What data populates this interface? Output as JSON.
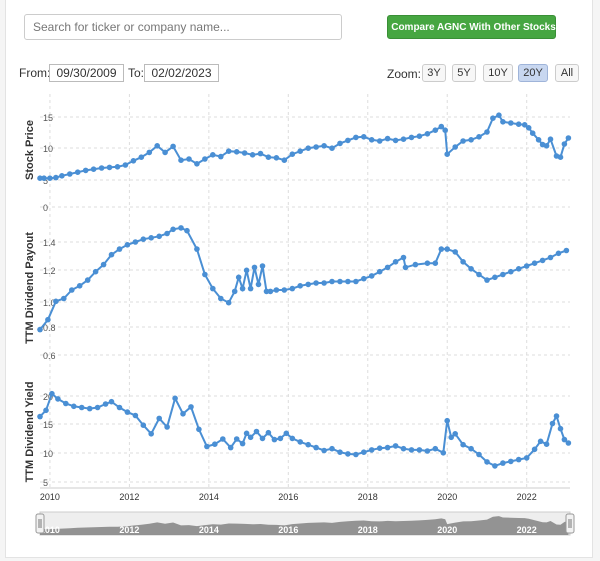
{
  "search": {
    "placeholder": "Search for ticker or company name..."
  },
  "compare_button": {
    "label": "Compare AGNC With Other Stocks",
    "color": "#46a641"
  },
  "date_range": {
    "from_label": "From:",
    "from_value": "09/30/2009",
    "to_label": "To:",
    "to_value": "02/02/2023"
  },
  "zoom": {
    "label": "Zoom:",
    "options": [
      "3Y",
      "5Y",
      "10Y",
      "20Y",
      "All"
    ],
    "selected": "20Y"
  },
  "colors": {
    "series": "#4a8fd4",
    "navigator_fill": "#888888"
  },
  "chart_data": [
    {
      "type": "line",
      "ylabel": "Stock Price",
      "yticks": [
        "15",
        "10",
        "5",
        "0"
      ],
      "ylim": [
        0,
        17
      ],
      "x_ticks": [
        "2010",
        "2012",
        "2014",
        "2016",
        "2018",
        "2020",
        "2022"
      ],
      "xlim": [
        2009.75,
        2023.09
      ],
      "grid": true,
      "points": [
        [
          2009.75,
          4.8
        ],
        [
          2009.85,
          4.8
        ],
        [
          2010.0,
          4.8
        ],
        [
          2010.15,
          4.9
        ],
        [
          2010.3,
          5.2
        ],
        [
          2010.5,
          5.5
        ],
        [
          2010.7,
          5.8
        ],
        [
          2010.9,
          6.1
        ],
        [
          2011.1,
          6.3
        ],
        [
          2011.3,
          6.5
        ],
        [
          2011.5,
          6.6
        ],
        [
          2011.7,
          6.7
        ],
        [
          2011.9,
          7.0
        ],
        [
          2012.1,
          7.7
        ],
        [
          2012.3,
          8.3
        ],
        [
          2012.5,
          9.1
        ],
        [
          2012.7,
          10.2
        ],
        [
          2012.9,
          9.1
        ],
        [
          2013.1,
          10.1
        ],
        [
          2013.3,
          7.8
        ],
        [
          2013.5,
          8.0
        ],
        [
          2013.7,
          7.2
        ],
        [
          2013.9,
          8.0
        ],
        [
          2014.1,
          8.7
        ],
        [
          2014.3,
          8.4
        ],
        [
          2014.5,
          9.3
        ],
        [
          2014.7,
          9.2
        ],
        [
          2014.9,
          9.0
        ],
        [
          2015.1,
          8.7
        ],
        [
          2015.3,
          8.9
        ],
        [
          2015.5,
          8.3
        ],
        [
          2015.7,
          8.2
        ],
        [
          2015.9,
          7.8
        ],
        [
          2016.1,
          8.8
        ],
        [
          2016.3,
          9.3
        ],
        [
          2016.5,
          9.8
        ],
        [
          2016.7,
          10.0
        ],
        [
          2016.9,
          10.2
        ],
        [
          2017.1,
          9.8
        ],
        [
          2017.3,
          10.6
        ],
        [
          2017.5,
          11.1
        ],
        [
          2017.7,
          11.6
        ],
        [
          2017.9,
          11.7
        ],
        [
          2018.1,
          11.2
        ],
        [
          2018.3,
          11.0
        ],
        [
          2018.5,
          11.4
        ],
        [
          2018.7,
          11.1
        ],
        [
          2018.9,
          11.3
        ],
        [
          2019.1,
          11.6
        ],
        [
          2019.3,
          11.8
        ],
        [
          2019.5,
          12.2
        ],
        [
          2019.7,
          12.8
        ],
        [
          2019.85,
          13.4
        ],
        [
          2019.95,
          12.8
        ],
        [
          2020.0,
          8.8
        ],
        [
          2020.2,
          10.0
        ],
        [
          2020.4,
          11.0
        ],
        [
          2020.6,
          11.2
        ],
        [
          2020.8,
          11.7
        ],
        [
          2021.0,
          12.5
        ],
        [
          2021.15,
          14.8
        ],
        [
          2021.3,
          15.3
        ],
        [
          2021.4,
          14.2
        ],
        [
          2021.6,
          14.0
        ],
        [
          2021.8,
          13.8
        ],
        [
          2021.95,
          13.7
        ],
        [
          2022.05,
          13.2
        ],
        [
          2022.15,
          12.3
        ],
        [
          2022.3,
          11.2
        ],
        [
          2022.4,
          10.4
        ],
        [
          2022.5,
          10.2
        ],
        [
          2022.6,
          11.3
        ],
        [
          2022.75,
          8.5
        ],
        [
          2022.85,
          8.3
        ],
        [
          2022.95,
          10.5
        ],
        [
          2023.05,
          11.5
        ]
      ]
    },
    {
      "type": "line",
      "ylabel": "TTM Dividend Payout",
      "yticks": [
        "1.4",
        "1.2",
        "1.0",
        "0.8",
        "0.6"
      ],
      "ylim": [
        0.6,
        1.5
      ],
      "x_ticks": [
        "2010",
        "2012",
        "2014",
        "2016",
        "2018",
        "2020",
        "2022"
      ],
      "xlim": [
        2009.75,
        2023.09
      ],
      "grid": true,
      "points": [
        [
          2009.75,
          0.78
        ],
        [
          2009.95,
          0.85
        ],
        [
          2010.15,
          0.98
        ],
        [
          2010.35,
          1.0
        ],
        [
          2010.55,
          1.06
        ],
        [
          2010.75,
          1.09
        ],
        [
          2010.95,
          1.13
        ],
        [
          2011.15,
          1.19
        ],
        [
          2011.35,
          1.24
        ],
        [
          2011.55,
          1.31
        ],
        [
          2011.75,
          1.35
        ],
        [
          2011.95,
          1.38
        ],
        [
          2012.15,
          1.4
        ],
        [
          2012.35,
          1.42
        ],
        [
          2012.55,
          1.43
        ],
        [
          2012.75,
          1.44
        ],
        [
          2012.95,
          1.46
        ],
        [
          2013.1,
          1.49
        ],
        [
          2013.3,
          1.5
        ],
        [
          2013.45,
          1.48
        ],
        [
          2013.7,
          1.35
        ],
        [
          2013.9,
          1.17
        ],
        [
          2014.1,
          1.07
        ],
        [
          2014.3,
          1.0
        ],
        [
          2014.5,
          0.97
        ],
        [
          2014.65,
          1.05
        ],
        [
          2014.75,
          1.15
        ],
        [
          2014.85,
          1.07
        ],
        [
          2014.95,
          1.2
        ],
        [
          2015.05,
          1.07
        ],
        [
          2015.15,
          1.22
        ],
        [
          2015.25,
          1.1
        ],
        [
          2015.35,
          1.23
        ],
        [
          2015.45,
          1.05
        ],
        [
          2015.55,
          1.05
        ],
        [
          2015.7,
          1.06
        ],
        [
          2015.9,
          1.06
        ],
        [
          2016.1,
          1.07
        ],
        [
          2016.3,
          1.09
        ],
        [
          2016.5,
          1.1
        ],
        [
          2016.7,
          1.11
        ],
        [
          2016.9,
          1.11
        ],
        [
          2017.1,
          1.12
        ],
        [
          2017.3,
          1.12
        ],
        [
          2017.5,
          1.12
        ],
        [
          2017.7,
          1.12
        ],
        [
          2017.9,
          1.14
        ],
        [
          2018.1,
          1.16
        ],
        [
          2018.3,
          1.19
        ],
        [
          2018.5,
          1.22
        ],
        [
          2018.7,
          1.26
        ],
        [
          2018.9,
          1.29
        ],
        [
          2018.95,
          1.22
        ],
        [
          2019.2,
          1.24
        ],
        [
          2019.5,
          1.25
        ],
        [
          2019.7,
          1.25
        ],
        [
          2019.85,
          1.35
        ],
        [
          2020.0,
          1.35
        ],
        [
          2020.2,
          1.33
        ],
        [
          2020.4,
          1.26
        ],
        [
          2020.6,
          1.21
        ],
        [
          2020.8,
          1.17
        ],
        [
          2021.0,
          1.13
        ],
        [
          2021.2,
          1.15
        ],
        [
          2021.4,
          1.17
        ],
        [
          2021.6,
          1.19
        ],
        [
          2021.8,
          1.21
        ],
        [
          2022.0,
          1.23
        ],
        [
          2022.2,
          1.25
        ],
        [
          2022.4,
          1.27
        ],
        [
          2022.6,
          1.29
        ],
        [
          2022.8,
          1.32
        ],
        [
          2023.0,
          1.34
        ]
      ]
    },
    {
      "type": "line",
      "ylabel": "TTM Dividend Yield",
      "yticks": [
        "20",
        "15",
        "10",
        "5"
      ],
      "ylim": [
        5,
        21
      ],
      "x_ticks": [
        "2010",
        "2012",
        "2014",
        "2016",
        "2018",
        "2020",
        "2022"
      ],
      "xlim": [
        2009.75,
        2023.09
      ],
      "grid": true,
      "points": [
        [
          2009.75,
          16.4
        ],
        [
          2009.9,
          17.5
        ],
        [
          2010.05,
          20.4
        ],
        [
          2010.2,
          19.5
        ],
        [
          2010.4,
          18.7
        ],
        [
          2010.6,
          18.2
        ],
        [
          2010.8,
          18.0
        ],
        [
          2011.0,
          17.8
        ],
        [
          2011.2,
          18.0
        ],
        [
          2011.4,
          18.6
        ],
        [
          2011.55,
          19.0
        ],
        [
          2011.75,
          18.0
        ],
        [
          2011.95,
          17.2
        ],
        [
          2012.15,
          16.6
        ],
        [
          2012.35,
          14.9
        ],
        [
          2012.55,
          13.4
        ],
        [
          2012.75,
          16.1
        ],
        [
          2012.95,
          14.6
        ],
        [
          2013.15,
          19.6
        ],
        [
          2013.35,
          16.9
        ],
        [
          2013.55,
          18.1
        ],
        [
          2013.75,
          14.2
        ],
        [
          2013.95,
          11.2
        ],
        [
          2014.15,
          11.6
        ],
        [
          2014.35,
          12.5
        ],
        [
          2014.55,
          11.0
        ],
        [
          2014.7,
          12.5
        ],
        [
          2014.85,
          11.7
        ],
        [
          2014.95,
          13.5
        ],
        [
          2015.05,
          12.8
        ],
        [
          2015.2,
          13.8
        ],
        [
          2015.35,
          12.6
        ],
        [
          2015.5,
          13.6
        ],
        [
          2015.65,
          12.4
        ],
        [
          2015.8,
          12.6
        ],
        [
          2015.95,
          13.5
        ],
        [
          2016.1,
          12.6
        ],
        [
          2016.3,
          12.0
        ],
        [
          2016.5,
          11.5
        ],
        [
          2016.7,
          11.0
        ],
        [
          2016.9,
          10.5
        ],
        [
          2017.1,
          10.8
        ],
        [
          2017.3,
          10.2
        ],
        [
          2017.5,
          9.9
        ],
        [
          2017.7,
          9.8
        ],
        [
          2017.9,
          10.2
        ],
        [
          2018.1,
          10.6
        ],
        [
          2018.3,
          10.9
        ],
        [
          2018.5,
          11.0
        ],
        [
          2018.7,
          11.3
        ],
        [
          2018.9,
          10.8
        ],
        [
          2019.1,
          10.6
        ],
        [
          2019.3,
          10.6
        ],
        [
          2019.5,
          10.4
        ],
        [
          2019.7,
          10.8
        ],
        [
          2019.9,
          10.1
        ],
        [
          2020.0,
          15.7
        ],
        [
          2020.1,
          12.8
        ],
        [
          2020.2,
          13.4
        ],
        [
          2020.4,
          11.5
        ],
        [
          2020.6,
          10.8
        ],
        [
          2020.8,
          9.8
        ],
        [
          2021.0,
          8.5
        ],
        [
          2021.2,
          7.8
        ],
        [
          2021.4,
          8.3
        ],
        [
          2021.6,
          8.6
        ],
        [
          2021.8,
          8.9
        ],
        [
          2022.0,
          9.2
        ],
        [
          2022.2,
          10.7
        ],
        [
          2022.35,
          12.1
        ],
        [
          2022.5,
          11.6
        ],
        [
          2022.65,
          15.2
        ],
        [
          2022.75,
          16.5
        ],
        [
          2022.85,
          14.3
        ],
        [
          2022.95,
          12.4
        ],
        [
          2023.05,
          11.8
        ]
      ]
    }
  ],
  "navigator": {
    "labels": [
      "2010",
      "2012",
      "2014",
      "2016",
      "2018",
      "2020",
      "2022"
    ],
    "handle_glyph": "||"
  }
}
